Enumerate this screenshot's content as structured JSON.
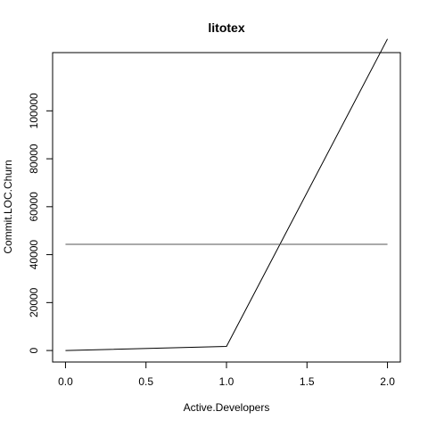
{
  "chart_data": {
    "type": "line",
    "title": "litotex",
    "xlabel": "Active.Developers",
    "ylabel": "Commit.LOC.Churn",
    "xlim": [
      -0.08,
      2.08
    ],
    "ylim": [
      -4800,
      124300
    ],
    "x_ticks": [
      0.0,
      0.5,
      1.0,
      1.5,
      2.0
    ],
    "x_tick_labels": [
      "0.0",
      "0.5",
      "1.0",
      "1.5",
      "2.0"
    ],
    "y_ticks": [
      0,
      20000,
      40000,
      60000,
      80000,
      100000
    ],
    "y_tick_labels": [
      "0",
      "20000",
      "40000",
      "60000",
      "80000",
      "100000"
    ],
    "grid": false,
    "series": [
      {
        "values_x": [
          0,
          1,
          2
        ],
        "values_y": [
          0,
          1700,
          130000
        ],
        "color": "#000000"
      },
      {
        "values_x": [
          0,
          2
        ],
        "values_y": [
          44300,
          44300
        ],
        "color": "#555555"
      }
    ]
  }
}
